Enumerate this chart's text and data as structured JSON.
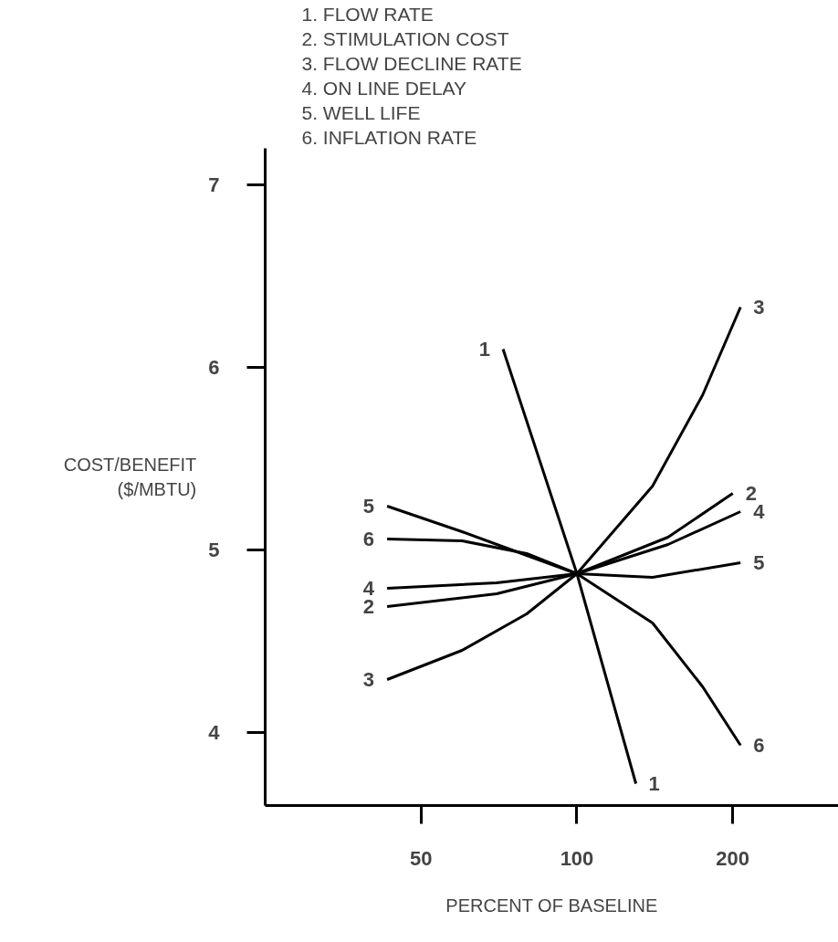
{
  "chart_data": {
    "type": "line",
    "xlabel": "PERCENT OF BASELINE",
    "ylabel": "COST/BENEFIT ($/MBTU)",
    "log": "x",
    "xlim": [
      25,
      320
    ],
    "ylim": [
      3.6,
      7.2
    ],
    "xticks": [
      50,
      100,
      200
    ],
    "yticks": [
      4,
      5,
      6,
      7
    ],
    "grid": false,
    "marker": "none",
    "line_style": "solid",
    "annotations": [
      "1.  FLOW RATE",
      "2.  STIMULATION COST",
      "3.  FLOW DECLINE RATE",
      "4.  ON LINE DELAY",
      "5.  WELL LIFE",
      "6.  INFLATION RATE"
    ],
    "series": [
      {
        "name": "1",
        "color": "#000000",
        "x": [
          72,
          100,
          130
        ],
        "values": [
          6.1,
          4.87,
          3.72
        ]
      },
      {
        "name": "2",
        "color": "#000000",
        "x": [
          43,
          70,
          100,
          150,
          200
        ],
        "values": [
          4.69,
          4.76,
          4.87,
          5.07,
          5.31
        ]
      },
      {
        "name": "3",
        "color": "#000000",
        "x": [
          43,
          60,
          80,
          100,
          140,
          175,
          207
        ],
        "values": [
          4.29,
          4.45,
          4.65,
          4.87,
          5.35,
          5.85,
          6.33
        ]
      },
      {
        "name": "4",
        "color": "#000000",
        "x": [
          43,
          70,
          100,
          150,
          207
        ],
        "values": [
          4.79,
          4.82,
          4.87,
          5.03,
          5.21
        ]
      },
      {
        "name": "5",
        "color": "#000000",
        "x": [
          43,
          60,
          80,
          100,
          140,
          207
        ],
        "values": [
          5.24,
          5.1,
          4.97,
          4.87,
          4.85,
          4.93
        ]
      },
      {
        "name": "6",
        "color": "#000000",
        "x": [
          43,
          60,
          80,
          100,
          140,
          175,
          207
        ],
        "values": [
          5.06,
          5.05,
          4.98,
          4.87,
          4.6,
          4.25,
          3.93
        ]
      }
    ]
  }
}
